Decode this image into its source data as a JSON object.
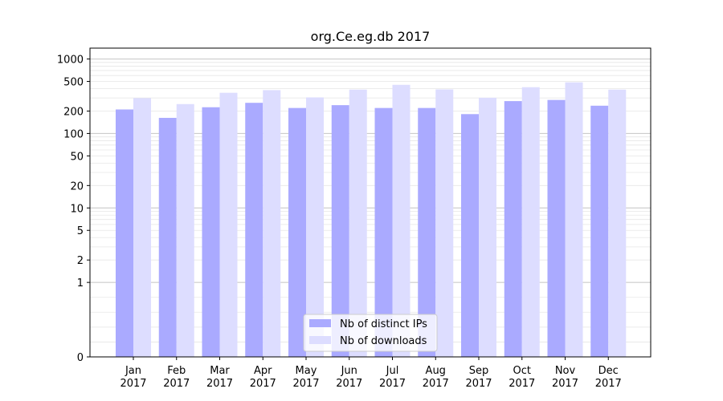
{
  "chart_data": {
    "type": "bar",
    "title": "org.Ce.eg.db 2017",
    "categories": [
      "Jan",
      "Feb",
      "Mar",
      "Apr",
      "May",
      "Jun",
      "Jul",
      "Aug",
      "Sep",
      "Oct",
      "Nov",
      "Dec"
    ],
    "category_sublabels": [
      "2017",
      "2017",
      "2017",
      "2017",
      "2017",
      "2017",
      "2017",
      "2017",
      "2017",
      "2017",
      "2017",
      "2017"
    ],
    "series": [
      {
        "name": "Nb of distinct IPs",
        "color": "#aaaaff",
        "values": [
          210,
          162,
          225,
          258,
          220,
          240,
          220,
          220,
          182,
          272,
          282,
          236
        ]
      },
      {
        "name": "Nb of downloads",
        "color": "#ddddff",
        "values": [
          298,
          248,
          352,
          382,
          305,
          388,
          450,
          390,
          302,
          418,
          486,
          388
        ]
      }
    ],
    "xlabel": "",
    "ylabel": "",
    "y_scale": "symlog",
    "ylim": [
      0,
      1400
    ],
    "y_ticks": [
      0,
      1,
      2,
      5,
      10,
      20,
      50,
      100,
      200,
      500,
      1000
    ],
    "grid": true,
    "legend_position": "bottom-center"
  }
}
